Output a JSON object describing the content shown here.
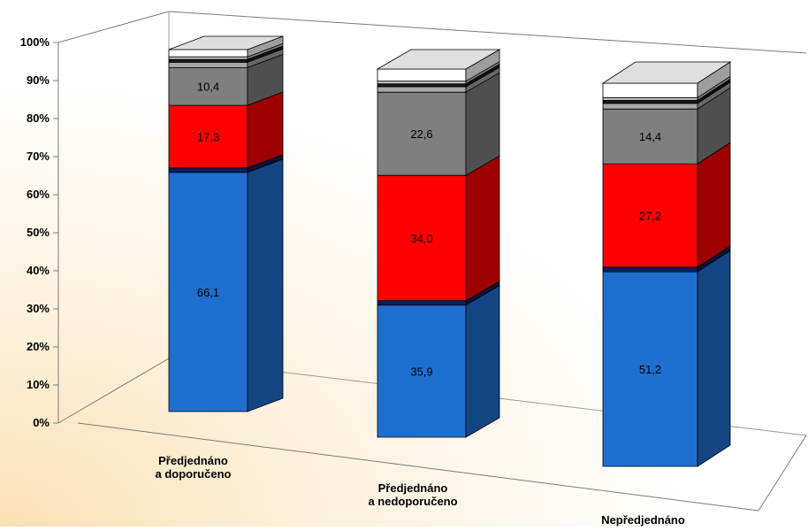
{
  "chart_data": {
    "type": "bar",
    "stacked": true,
    "three_d": true,
    "categories": [
      [
        "Předjednáno",
        "a doporučeno"
      ],
      [
        "Předjednáno",
        "a nedoporučeno"
      ],
      [
        "Nepředjednáno"
      ]
    ],
    "series": [
      {
        "color": "#1f6fd1",
        "values": [
          66.1,
          35.9,
          51.2
        ],
        "labels": [
          "66,1",
          "35,9",
          "51,2"
        ]
      },
      {
        "color": "#0d1f5c",
        "values": [
          1.2,
          1.2,
          1.2
        ],
        "labels": [
          "",
          "",
          ""
        ]
      },
      {
        "color": "#ff0000",
        "values": [
          17.3,
          34.0,
          27.2
        ],
        "labels": [
          "17,3",
          "34,0",
          "27,2"
        ]
      },
      {
        "color": "#7f7f7f",
        "values": [
          10.4,
          22.6,
          14.4
        ],
        "labels": [
          "10,4",
          "22,6",
          "14,4"
        ]
      },
      {
        "color": "#a6a6a6",
        "values": [
          1.5,
          1.5,
          1.5
        ],
        "labels": [
          "",
          "",
          ""
        ]
      },
      {
        "color": "#1a1a1a",
        "values": [
          0.8,
          0.8,
          0.8
        ],
        "labels": [
          "",
          "",
          ""
        ]
      },
      {
        "color": "#cfcfcf",
        "values": [
          0.7,
          0.7,
          0.7
        ],
        "labels": [
          "",
          "",
          ""
        ]
      },
      {
        "color": "#ffffff",
        "values": [
          2.0,
          3.3,
          3.8
        ],
        "labels": [
          "",
          "",
          ""
        ]
      }
    ],
    "yticks": [
      "0%",
      "10%",
      "20%",
      "30%",
      "40%",
      "50%",
      "60%",
      "70%",
      "80%",
      "90%",
      "100%"
    ],
    "ylim": [
      0,
      100
    ],
    "grid": false,
    "legend": "none"
  }
}
